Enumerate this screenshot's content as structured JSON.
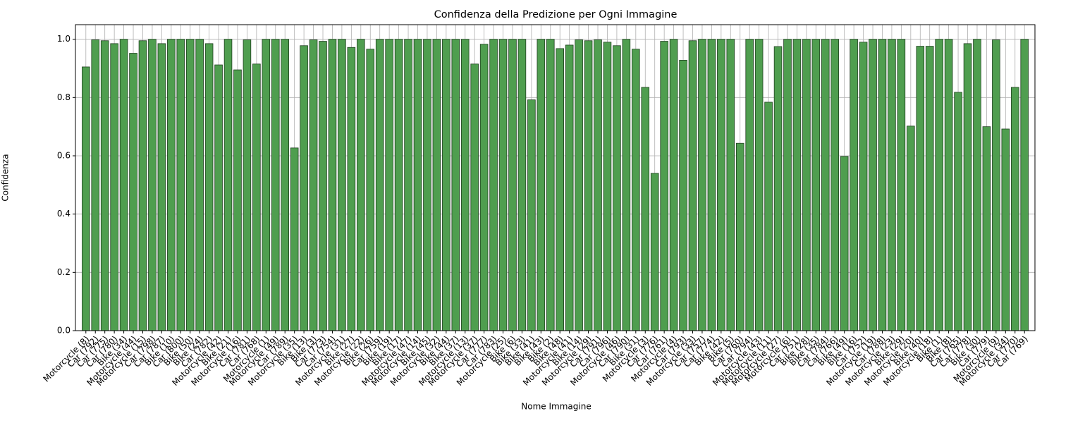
{
  "chart_data": {
    "type": "bar",
    "title": "Confidenza della Predizione per Ogni Immagine",
    "x_label": "Nome Immagine",
    "y_label": "Confidenza",
    "categories": [
      "Motorcycle (8)",
      "Car (792)",
      "Car (775)",
      "Car (780)",
      "Bike (34)",
      "Motorcycle (44)",
      "Motorcycle (15)",
      "Car (798)",
      "Car (787)",
      "Bike (10)",
      "Car (800)",
      "Bike (50)",
      "Bike (24)",
      "Car (782)",
      "Motorcycle (42)",
      "Bike (21)",
      "Motorcycle (16)",
      "Car (781)",
      "Car (768)",
      "Motorcycle (1)",
      "Motorcycle (49)",
      "Car (789)",
      "Motorcycle (35)",
      "Bike (13)",
      "Bike (3)",
      "Car (773)",
      "Car (754)",
      "Motorcycle (31)",
      "Bike (27)",
      "Motorcycle (22)",
      "Bike (26)",
      "Car (759)",
      "Bike (19)",
      "Bike (17)",
      "Motorcycle (47)",
      "Motorcycle (14)",
      "Bike (45)",
      "Motorcycle (32)",
      "Bike (44)",
      "Bike (37)",
      "Motorcycle (13)",
      "Motorcycle (37)",
      "Car (777)",
      "Car (783)",
      "Motorcycle (25)",
      "Bike (6)",
      "Bike (33)",
      "Bike (41)",
      "Bike (43)",
      "Bike (2)",
      "Bike (48)",
      "Motorcycle (41)",
      "Bike (14)",
      "Motorcycle (29)",
      "Car (791)",
      "Car (796)",
      "Motorcycle (46)",
      "Car (790)",
      "Bike (31)",
      "Motorcycle (3)",
      "Car (776)",
      "Car (761)",
      "Motorcycle (4)",
      "Car (793)",
      "Motorcycle (33)",
      "Car (757)",
      "Car (774)",
      "Bike (42)",
      "Bike (5)",
      "Car (760)",
      "Car (794)",
      "Motorcycle (43)",
      "Motorcycle (11)",
      "Motorcycle (27)",
      "Motorcycle (6)",
      "Car (751)",
      "Bike (28)",
      "Bike (35)",
      "Car (784)",
      "Car (766)",
      "Bike (49)",
      "Bike (16)",
      "Car (752)",
      "Motorcycle (19)",
      "Car (788)",
      "Motorcycle (23)",
      "Bike (29)",
      "Motorcycle (20)",
      "Bike (40)",
      "Motorcycle (18)",
      "Bike (1)",
      "Bike (8)",
      "Car (765)",
      "Car (778)",
      "Bike (30)",
      "Car (779)",
      "Motorcycle (9)",
      "Motorcycle (34)",
      "Car (770)",
      "Car (769)"
    ],
    "values": [
      0.905,
      0.998,
      0.995,
      0.985,
      1.0,
      0.952,
      0.995,
      1.0,
      0.985,
      1.0,
      1.0,
      1.0,
      1.0,
      0.985,
      0.912,
      1.0,
      0.895,
      0.998,
      0.915,
      1.0,
      1.0,
      1.0,
      0.627,
      0.978,
      0.998,
      0.993,
      1.0,
      1.0,
      0.972,
      1.0,
      0.966,
      1.0,
      1.0,
      1.0,
      1.0,
      1.0,
      1.0,
      1.0,
      1.0,
      1.0,
      1.0,
      0.915,
      0.983,
      1.0,
      1.0,
      1.0,
      1.0,
      0.792,
      1.0,
      1.0,
      0.968,
      0.98,
      0.998,
      0.995,
      0.998,
      0.99,
      0.978,
      1.0,
      0.966,
      0.835,
      0.54,
      0.993,
      1.0,
      0.928,
      0.995,
      1.0,
      1.0,
      1.0,
      1.0,
      0.643,
      1.0,
      1.0,
      0.784,
      0.975,
      1.0,
      1.0,
      1.0,
      1.0,
      1.0,
      1.0,
      0.598,
      1.0,
      0.99,
      1.0,
      1.0,
      1.0,
      1.0,
      0.702,
      0.976,
      0.976,
      1.0,
      1.0,
      0.818,
      0.985,
      1.0,
      0.7,
      0.998,
      0.692,
      0.835,
      1.0
    ],
    "color": "#4f9e4f",
    "ylim": [
      0,
      1.05
    ],
    "yticks": [
      {
        "value": 0,
        "label": "0.0"
      },
      0.2,
      0.4,
      0.6,
      0.8,
      {
        "value": 1,
        "label": "1.0"
      }
    ],
    "grid": true
  }
}
